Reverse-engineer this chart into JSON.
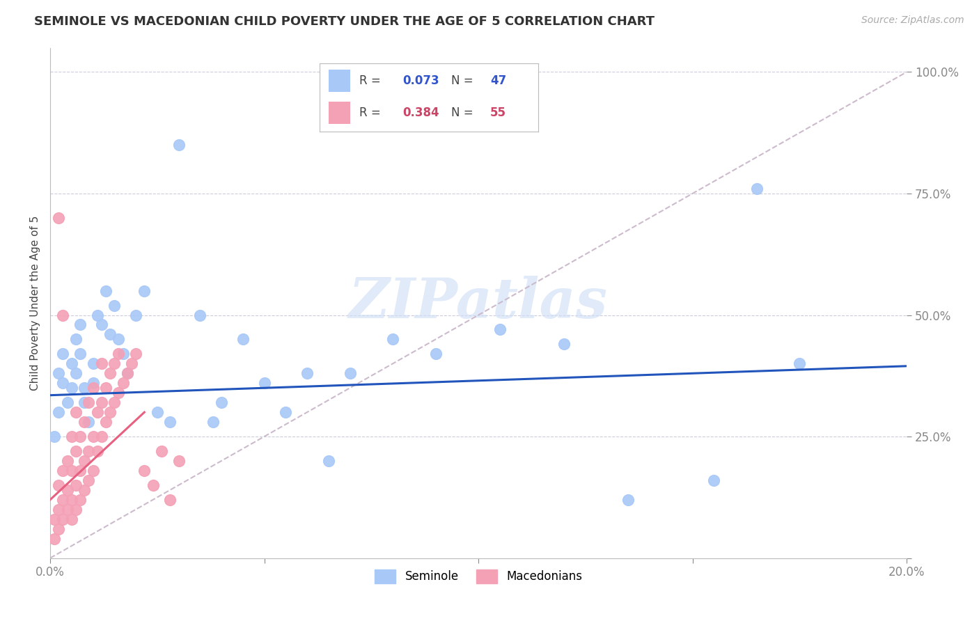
{
  "title": "SEMINOLE VS MACEDONIAN CHILD POVERTY UNDER THE AGE OF 5 CORRELATION CHART",
  "source": "Source: ZipAtlas.com",
  "ylabel": "Child Poverty Under the Age of 5",
  "x_min": 0.0,
  "x_max": 0.2,
  "y_min": 0.0,
  "y_max": 1.05,
  "seminole_R": 0.073,
  "seminole_N": 47,
  "macedonian_R": 0.384,
  "macedonian_N": 55,
  "seminole_color": "#a8c8f8",
  "macedonian_color": "#f4a0b5",
  "seminole_line_color": "#2255bb",
  "macedonian_line_color": "#e86080",
  "diagonal_color": "#ccbbcc",
  "watermark_color": "#d0dff5",
  "seminole_x": [
    0.001,
    0.002,
    0.002,
    0.003,
    0.003,
    0.004,
    0.005,
    0.005,
    0.006,
    0.006,
    0.007,
    0.007,
    0.008,
    0.008,
    0.009,
    0.01,
    0.01,
    0.011,
    0.012,
    0.013,
    0.014,
    0.015,
    0.016,
    0.017,
    0.018,
    0.02,
    0.022,
    0.025,
    0.028,
    0.03,
    0.035,
    0.038,
    0.04,
    0.045,
    0.05,
    0.055,
    0.06,
    0.065,
    0.07,
    0.08,
    0.09,
    0.105,
    0.12,
    0.135,
    0.155,
    0.165,
    0.175
  ],
  "seminole_y": [
    0.25,
    0.3,
    0.38,
    0.36,
    0.42,
    0.32,
    0.35,
    0.4,
    0.38,
    0.45,
    0.42,
    0.48,
    0.35,
    0.32,
    0.28,
    0.36,
    0.4,
    0.5,
    0.48,
    0.55,
    0.46,
    0.52,
    0.45,
    0.42,
    0.38,
    0.5,
    0.55,
    0.3,
    0.28,
    0.85,
    0.5,
    0.28,
    0.32,
    0.45,
    0.36,
    0.3,
    0.38,
    0.2,
    0.38,
    0.45,
    0.42,
    0.47,
    0.44,
    0.12,
    0.16,
    0.76,
    0.4
  ],
  "macedonian_x": [
    0.001,
    0.001,
    0.002,
    0.002,
    0.002,
    0.003,
    0.003,
    0.003,
    0.004,
    0.004,
    0.004,
    0.005,
    0.005,
    0.005,
    0.005,
    0.006,
    0.006,
    0.006,
    0.006,
    0.007,
    0.007,
    0.007,
    0.008,
    0.008,
    0.008,
    0.009,
    0.009,
    0.009,
    0.01,
    0.01,
    0.01,
    0.011,
    0.011,
    0.012,
    0.012,
    0.012,
    0.013,
    0.013,
    0.014,
    0.014,
    0.015,
    0.015,
    0.016,
    0.016,
    0.017,
    0.018,
    0.019,
    0.02,
    0.022,
    0.024,
    0.026,
    0.028,
    0.03,
    0.002,
    0.003
  ],
  "macedonian_y": [
    0.04,
    0.08,
    0.06,
    0.1,
    0.15,
    0.08,
    0.12,
    0.18,
    0.1,
    0.14,
    0.2,
    0.08,
    0.12,
    0.18,
    0.25,
    0.1,
    0.15,
    0.22,
    0.3,
    0.12,
    0.18,
    0.25,
    0.14,
    0.2,
    0.28,
    0.16,
    0.22,
    0.32,
    0.18,
    0.25,
    0.35,
    0.22,
    0.3,
    0.25,
    0.32,
    0.4,
    0.28,
    0.35,
    0.3,
    0.38,
    0.32,
    0.4,
    0.34,
    0.42,
    0.36,
    0.38,
    0.4,
    0.42,
    0.18,
    0.15,
    0.22,
    0.12,
    0.2,
    0.7,
    0.5
  ],
  "seminole_line_x": [
    0.0,
    0.2
  ],
  "seminole_line_y": [
    0.335,
    0.395
  ],
  "macedonian_line_x": [
    0.0,
    0.025
  ],
  "macedonian_line_y": [
    0.12,
    0.3
  ]
}
